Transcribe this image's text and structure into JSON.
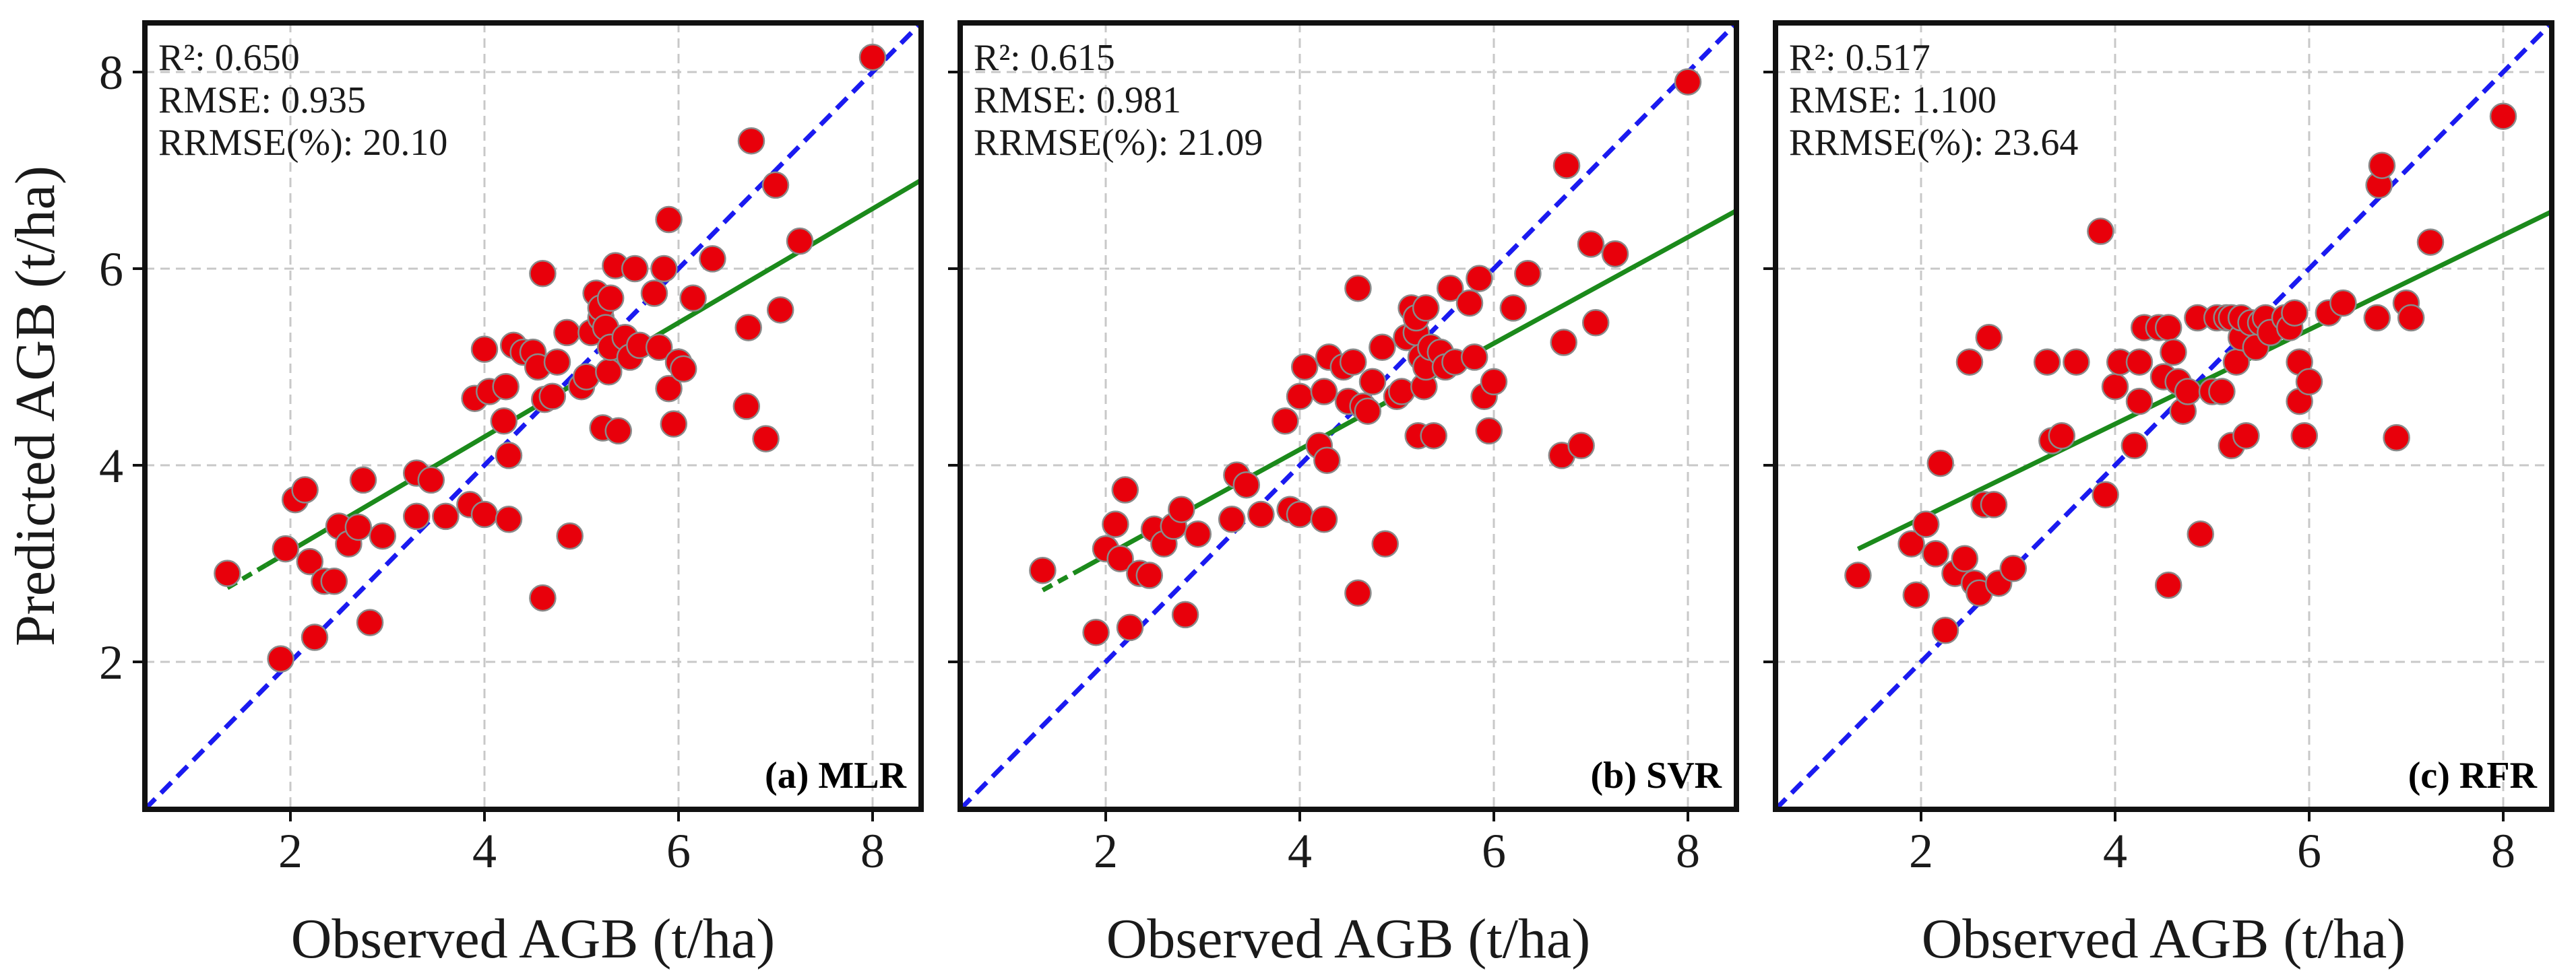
{
  "figure": {
    "ylabel": "Predicted AGB (t/ha)",
    "colors": {
      "point_fill": "#e8000b",
      "point_stroke": "#8a8a8a",
      "one_to_one": "#1a1af0",
      "fit_line": "#1b8a1b",
      "grid": "#c8c8c8",
      "frame": "#111111"
    }
  },
  "chart_data": [
    {
      "type": "scatter",
      "panel_label": "(a) MLR",
      "xlabel": "Observed AGB (t/ha)",
      "ylabel": "Predicted AGB (t/ha)",
      "xlim": [
        0.5,
        8.5
      ],
      "ylim": [
        0.5,
        8.5
      ],
      "xticks": [
        2,
        4,
        6,
        8
      ],
      "yticks": [
        2,
        4,
        6,
        8
      ],
      "grid": true,
      "metrics": [
        "R²: 0.650",
        "RMSE: 0.935",
        "RRMSE(%): 20.10"
      ],
      "fit": {
        "x_start": 1.35,
        "x_end": 8.5,
        "slope": 0.58,
        "intercept": 1.97,
        "dashed_until": 1.75
      },
      "one_to_one": true,
      "points": [
        [
          1.35,
          2.9
        ],
        [
          1.9,
          2.03
        ],
        [
          1.95,
          3.15
        ],
        [
          2.05,
          3.65
        ],
        [
          2.15,
          3.75
        ],
        [
          2.2,
          3.02
        ],
        [
          2.25,
          2.25
        ],
        [
          2.35,
          2.82
        ],
        [
          2.45,
          2.82
        ],
        [
          2.5,
          3.38
        ],
        [
          2.6,
          3.2
        ],
        [
          2.7,
          3.37
        ],
        [
          2.75,
          3.85
        ],
        [
          2.82,
          2.4
        ],
        [
          2.95,
          3.28
        ],
        [
          3.3,
          3.48
        ],
        [
          3.3,
          3.92
        ],
        [
          3.45,
          3.85
        ],
        [
          3.6,
          3.48
        ],
        [
          3.85,
          3.6
        ],
        [
          3.9,
          4.68
        ],
        [
          4.0,
          5.18
        ],
        [
          4.0,
          3.5
        ],
        [
          4.05,
          4.75
        ],
        [
          4.2,
          4.45
        ],
        [
          4.22,
          4.8
        ],
        [
          4.25,
          3.45
        ],
        [
          4.25,
          4.1
        ],
        [
          4.3,
          5.22
        ],
        [
          4.4,
          5.15
        ],
        [
          4.5,
          5.15
        ],
        [
          4.55,
          5.0
        ],
        [
          4.6,
          2.65
        ],
        [
          4.6,
          5.95
        ],
        [
          4.62,
          4.67
        ],
        [
          4.7,
          4.7
        ],
        [
          4.75,
          5.05
        ],
        [
          4.85,
          5.35
        ],
        [
          4.88,
          3.28
        ],
        [
          5.0,
          4.8
        ],
        [
          5.05,
          4.9
        ],
        [
          5.1,
          5.35
        ],
        [
          5.15,
          5.75
        ],
        [
          5.2,
          5.5
        ],
        [
          5.2,
          5.6
        ],
        [
          5.22,
          4.38
        ],
        [
          5.25,
          5.4
        ],
        [
          5.28,
          4.95
        ],
        [
          5.3,
          5.2
        ],
        [
          5.3,
          5.7
        ],
        [
          5.35,
          6.03
        ],
        [
          5.38,
          4.35
        ],
        [
          5.45,
          5.3
        ],
        [
          5.5,
          5.1
        ],
        [
          5.55,
          6.0
        ],
        [
          5.6,
          5.22
        ],
        [
          5.75,
          5.75
        ],
        [
          5.8,
          5.2
        ],
        [
          5.85,
          6.0
        ],
        [
          5.9,
          4.78
        ],
        [
          5.9,
          6.5
        ],
        [
          5.95,
          4.42
        ],
        [
          6.0,
          5.05
        ],
        [
          6.05,
          4.98
        ],
        [
          6.15,
          5.7
        ],
        [
          6.35,
          6.1
        ],
        [
          6.7,
          4.6
        ],
        [
          6.72,
          5.4
        ],
        [
          6.75,
          7.3
        ],
        [
          6.9,
          4.27
        ],
        [
          7.0,
          6.85
        ],
        [
          7.05,
          5.58
        ],
        [
          7.25,
          6.28
        ],
        [
          8.0,
          8.15
        ]
      ]
    },
    {
      "type": "scatter",
      "panel_label": "(b) SVR",
      "xlabel": "Observed AGB (t/ha)",
      "ylabel": "",
      "xlim": [
        0.5,
        8.5
      ],
      "ylim": [
        0.5,
        8.5
      ],
      "xticks": [
        2,
        4,
        6,
        8
      ],
      "yticks": [
        2,
        4,
        6,
        8
      ],
      "grid": true,
      "metrics": [
        "R²: 0.615",
        "RMSE: 0.981",
        "RRMSE(%): 21.09"
      ],
      "fit": {
        "x_start": 1.35,
        "x_end": 8.5,
        "slope": 0.54,
        "intercept": 2.0,
        "dashed_until": 1.75
      },
      "one_to_one": true,
      "points": [
        [
          1.35,
          2.93
        ],
        [
          1.9,
          2.3
        ],
        [
          2.0,
          3.15
        ],
        [
          2.1,
          3.4
        ],
        [
          2.15,
          3.05
        ],
        [
          2.2,
          3.75
        ],
        [
          2.25,
          2.35
        ],
        [
          2.35,
          2.9
        ],
        [
          2.45,
          2.88
        ],
        [
          2.5,
          3.35
        ],
        [
          2.6,
          3.2
        ],
        [
          2.7,
          3.38
        ],
        [
          2.78,
          3.55
        ],
        [
          2.82,
          2.48
        ],
        [
          2.95,
          3.3
        ],
        [
          3.3,
          3.45
        ],
        [
          3.35,
          3.9
        ],
        [
          3.45,
          3.8
        ],
        [
          3.6,
          3.5
        ],
        [
          3.85,
          4.45
        ],
        [
          3.9,
          3.55
        ],
        [
          4.0,
          3.5
        ],
        [
          4.0,
          4.7
        ],
        [
          4.05,
          5.0
        ],
        [
          4.2,
          4.2
        ],
        [
          4.25,
          4.75
        ],
        [
          4.25,
          3.45
        ],
        [
          4.28,
          4.05
        ],
        [
          4.3,
          5.1
        ],
        [
          4.45,
          5.0
        ],
        [
          4.5,
          4.65
        ],
        [
          4.55,
          5.05
        ],
        [
          4.6,
          2.7
        ],
        [
          4.6,
          5.8
        ],
        [
          4.65,
          4.6
        ],
        [
          4.7,
          4.55
        ],
        [
          4.75,
          4.85
        ],
        [
          4.85,
          5.2
        ],
        [
          4.88,
          3.2
        ],
        [
          5.0,
          4.7
        ],
        [
          5.05,
          4.75
        ],
        [
          5.1,
          5.3
        ],
        [
          5.15,
          5.6
        ],
        [
          5.2,
          5.35
        ],
        [
          5.2,
          5.5
        ],
        [
          5.22,
          4.3
        ],
        [
          5.25,
          5.1
        ],
        [
          5.28,
          4.8
        ],
        [
          5.3,
          5.0
        ],
        [
          5.3,
          5.6
        ],
        [
          5.35,
          5.2
        ],
        [
          5.38,
          4.3
        ],
        [
          5.45,
          5.15
        ],
        [
          5.5,
          5.0
        ],
        [
          5.55,
          5.8
        ],
        [
          5.6,
          5.05
        ],
        [
          5.75,
          5.65
        ],
        [
          5.8,
          5.1
        ],
        [
          5.85,
          5.9
        ],
        [
          5.9,
          4.7
        ],
        [
          5.95,
          4.35
        ],
        [
          6.0,
          4.85
        ],
        [
          6.2,
          5.6
        ],
        [
          6.35,
          5.95
        ],
        [
          6.7,
          4.1
        ],
        [
          6.72,
          5.25
        ],
        [
          6.75,
          7.05
        ],
        [
          6.9,
          4.2
        ],
        [
          7.0,
          6.25
        ],
        [
          7.05,
          5.45
        ],
        [
          7.25,
          6.15
        ],
        [
          8.0,
          7.9
        ]
      ]
    },
    {
      "type": "scatter",
      "panel_label": "(c) RFR",
      "xlabel": "Observed AGB (t/ha)",
      "ylabel": "",
      "xlim": [
        0.5,
        8.5
      ],
      "ylim": [
        0.5,
        8.5
      ],
      "xticks": [
        2,
        4,
        6,
        8
      ],
      "yticks": [
        2,
        4,
        6,
        8
      ],
      "grid": true,
      "metrics": [
        "R²: 0.517",
        "RMSE: 1.100",
        "RRMSE(%): 23.64"
      ],
      "fit": {
        "x_start": 1.35,
        "x_end": 8.5,
        "slope": 0.48,
        "intercept": 2.5,
        "dashed_until": null
      },
      "one_to_one": true,
      "points": [
        [
          1.35,
          2.88
        ],
        [
          1.9,
          3.2
        ],
        [
          1.95,
          2.68
        ],
        [
          2.05,
          3.4
        ],
        [
          2.15,
          3.1
        ],
        [
          2.2,
          4.02
        ],
        [
          2.25,
          2.32
        ],
        [
          2.35,
          2.9
        ],
        [
          2.45,
          3.05
        ],
        [
          2.5,
          5.05
        ],
        [
          2.55,
          2.8
        ],
        [
          2.6,
          2.7
        ],
        [
          2.65,
          3.6
        ],
        [
          2.7,
          5.3
        ],
        [
          2.75,
          3.6
        ],
        [
          2.8,
          2.8
        ],
        [
          2.95,
          2.95
        ],
        [
          3.3,
          5.05
        ],
        [
          3.35,
          4.25
        ],
        [
          3.45,
          4.3
        ],
        [
          3.6,
          5.05
        ],
        [
          3.85,
          6.38
        ],
        [
          3.9,
          3.7
        ],
        [
          4.0,
          4.8
        ],
        [
          4.05,
          5.05
        ],
        [
          4.2,
          4.2
        ],
        [
          4.25,
          4.65
        ],
        [
          4.25,
          5.05
        ],
        [
          4.3,
          5.4
        ],
        [
          4.45,
          5.4
        ],
        [
          4.5,
          4.9
        ],
        [
          4.55,
          5.4
        ],
        [
          4.55,
          2.78
        ],
        [
          4.6,
          5.15
        ],
        [
          4.65,
          4.85
        ],
        [
          4.7,
          4.55
        ],
        [
          4.75,
          4.75
        ],
        [
          4.85,
          5.5
        ],
        [
          4.88,
          3.3
        ],
        [
          5.0,
          4.75
        ],
        [
          5.05,
          5.5
        ],
        [
          5.1,
          4.75
        ],
        [
          5.15,
          5.5
        ],
        [
          5.2,
          5.5
        ],
        [
          5.2,
          4.2
        ],
        [
          5.25,
          5.05
        ],
        [
          5.3,
          5.3
        ],
        [
          5.3,
          5.5
        ],
        [
          5.35,
          4.3
        ],
        [
          5.4,
          5.45
        ],
        [
          5.45,
          5.2
        ],
        [
          5.5,
          5.45
        ],
        [
          5.55,
          5.5
        ],
        [
          5.6,
          5.35
        ],
        [
          5.75,
          5.5
        ],
        [
          5.8,
          5.4
        ],
        [
          5.85,
          5.55
        ],
        [
          5.9,
          5.05
        ],
        [
          5.9,
          4.65
        ],
        [
          5.95,
          4.3
        ],
        [
          6.0,
          4.85
        ],
        [
          6.2,
          5.55
        ],
        [
          6.35,
          5.65
        ],
        [
          6.7,
          5.5
        ],
        [
          6.72,
          6.85
        ],
        [
          6.75,
          7.05
        ],
        [
          6.9,
          4.28
        ],
        [
          7.0,
          5.65
        ],
        [
          7.05,
          5.5
        ],
        [
          7.25,
          6.27
        ],
        [
          8.0,
          7.55
        ]
      ]
    }
  ]
}
